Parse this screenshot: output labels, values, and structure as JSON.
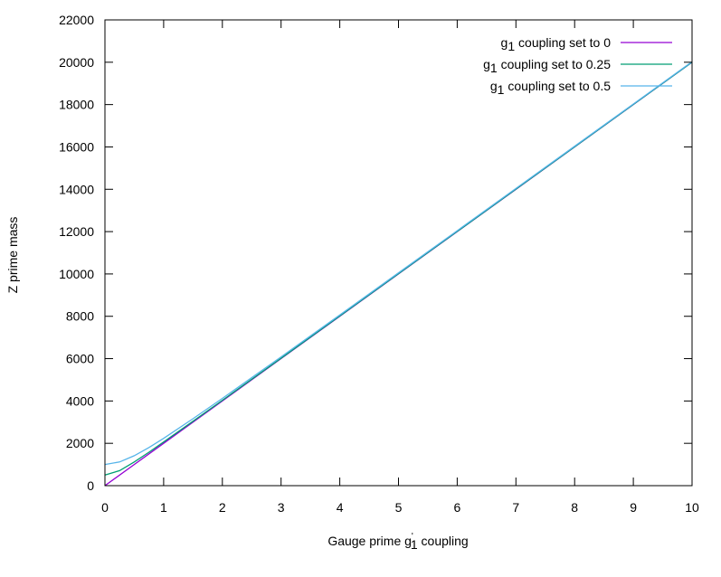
{
  "chart_data": {
    "type": "line",
    "xlabel": {
      "main": "Gauge prime g",
      "sup": "'",
      "sub": "1",
      "tail": " coupling"
    },
    "ylabel": "Z prime mass",
    "xlim": [
      0,
      10
    ],
    "ylim": [
      0,
      22000
    ],
    "xticks": [
      0,
      1,
      2,
      3,
      4,
      5,
      6,
      7,
      8,
      9,
      10
    ],
    "yticks": [
      0,
      2000,
      4000,
      6000,
      8000,
      10000,
      12000,
      14000,
      16000,
      18000,
      20000,
      22000
    ],
    "grid": false,
    "legend_position": "top-right",
    "series": [
      {
        "label": {
          "g": "g",
          "sub": "1",
          "text": " coupling set to 0"
        },
        "color": "#9400d3",
        "g1": 0,
        "x": [
          0,
          0.5,
          1,
          2,
          3,
          4,
          5,
          6,
          7,
          8,
          9,
          10
        ],
        "y": [
          0,
          1000,
          2000,
          4000,
          6000,
          8000,
          10000,
          12000,
          14000,
          16000,
          18000,
          20000
        ]
      },
      {
        "label": {
          "g": "g",
          "sub": "1",
          "text": " coupling set to 0.25"
        },
        "color": "#009e73",
        "g1": 0.25,
        "x": [
          0,
          0.25,
          0.5,
          0.75,
          1,
          1.5,
          2,
          3,
          4,
          5,
          6,
          7,
          8,
          9,
          10
        ],
        "y": [
          500,
          707,
          1118,
          1581,
          2062,
          3041,
          4031,
          6021,
          8016,
          10012,
          12010,
          14009,
          16008,
          18007,
          20006
        ]
      },
      {
        "label": {
          "g": "g",
          "sub": "1",
          "text": " coupling set to 0.5"
        },
        "color": "#56b4e9",
        "g1": 0.5,
        "x": [
          0,
          0.25,
          0.5,
          0.75,
          1,
          1.5,
          2,
          3,
          4,
          5,
          6,
          7,
          8,
          9,
          10
        ],
        "y": [
          1000,
          1118,
          1414,
          1803,
          2236,
          3162,
          4123,
          6083,
          8062,
          10050,
          12042,
          14036,
          16031,
          18028,
          20025
        ]
      }
    ]
  }
}
